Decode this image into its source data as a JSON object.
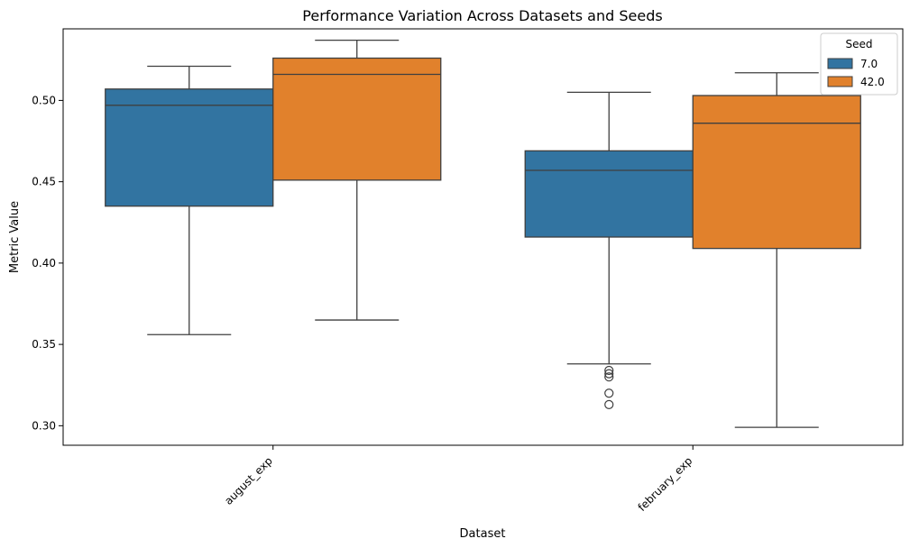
{
  "chart_data": {
    "type": "box",
    "title": "Performance Variation Across Datasets and Seeds",
    "xlabel": "Dataset",
    "ylabel": "Metric Value",
    "categories": [
      "august_exp",
      "february_exp"
    ],
    "ylim": [
      0.288,
      0.544
    ],
    "yticks": [
      "0.30",
      "0.35",
      "0.40",
      "0.45",
      "0.50"
    ],
    "ytick_values": [
      0.3,
      0.35,
      0.4,
      0.45,
      0.5
    ],
    "legend": {
      "title": "Seed",
      "position": "upper right"
    },
    "series": [
      {
        "name": "7.0",
        "color": "#3274a1",
        "boxes": [
          {
            "whislo": 0.356,
            "q1": 0.435,
            "med": 0.497,
            "q3": 0.507,
            "whishi": 0.521,
            "fliers": []
          },
          {
            "whislo": 0.338,
            "q1": 0.416,
            "med": 0.457,
            "q3": 0.469,
            "whishi": 0.505,
            "fliers": [
              0.334,
              0.332,
              0.33,
              0.32,
              0.313
            ]
          }
        ]
      },
      {
        "name": "42.0",
        "color": "#e1812c",
        "boxes": [
          {
            "whislo": 0.365,
            "q1": 0.451,
            "med": 0.516,
            "q3": 0.526,
            "whishi": 0.537,
            "fliers": []
          },
          {
            "whislo": 0.299,
            "q1": 0.409,
            "med": 0.486,
            "q3": 0.503,
            "whishi": 0.517,
            "fliers": []
          }
        ]
      }
    ]
  }
}
